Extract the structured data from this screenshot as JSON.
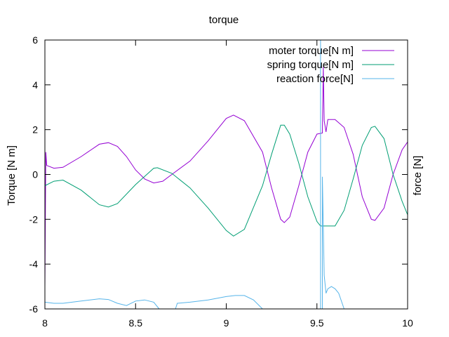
{
  "chart_data": {
    "type": "line",
    "title": "torque",
    "xlabel": "",
    "ylabel": "Torque [N m]",
    "y2label": "force [N]",
    "xlim": [
      8,
      10
    ],
    "ylim": [
      -6,
      6
    ],
    "xticks": [
      "8",
      "8.5",
      "9",
      "9.5",
      "10"
    ],
    "yticks": [
      "-6",
      "-4",
      "-2",
      "0",
      "2",
      "4",
      "6"
    ],
    "grid": false,
    "legend_position": "top-right",
    "series": [
      {
        "name": "moter torque[N m]",
        "color": "#9400d3",
        "points": [
          [
            8.0,
            -5.0
          ],
          [
            8.005,
            1.0
          ],
          [
            8.01,
            0.4
          ],
          [
            8.05,
            0.28
          ],
          [
            8.1,
            0.32
          ],
          [
            8.2,
            0.8
          ],
          [
            8.3,
            1.35
          ],
          [
            8.35,
            1.42
          ],
          [
            8.4,
            1.25
          ],
          [
            8.45,
            0.8
          ],
          [
            8.5,
            0.2
          ],
          [
            8.55,
            -0.2
          ],
          [
            8.6,
            -0.38
          ],
          [
            8.65,
            -0.3
          ],
          [
            8.7,
            0.0
          ],
          [
            8.8,
            0.6
          ],
          [
            8.9,
            1.5
          ],
          [
            9.0,
            2.5
          ],
          [
            9.04,
            2.65
          ],
          [
            9.1,
            2.4
          ],
          [
            9.2,
            1.0
          ],
          [
            9.25,
            -0.6
          ],
          [
            9.3,
            -2.0
          ],
          [
            9.32,
            -2.15
          ],
          [
            9.35,
            -1.9
          ],
          [
            9.4,
            -0.5
          ],
          [
            9.45,
            1.0
          ],
          [
            9.5,
            1.8
          ],
          [
            9.53,
            1.85
          ],
          [
            9.535,
            4.8
          ],
          [
            9.54,
            2.4
          ],
          [
            9.55,
            1.9
          ],
          [
            9.56,
            2.45
          ],
          [
            9.6,
            2.45
          ],
          [
            9.65,
            2.1
          ],
          [
            9.7,
            0.9
          ],
          [
            9.75,
            -1.0
          ],
          [
            9.8,
            -2.0
          ],
          [
            9.82,
            -2.05
          ],
          [
            9.87,
            -1.5
          ],
          [
            9.92,
            0.0
          ],
          [
            9.97,
            1.1
          ],
          [
            10.0,
            1.45
          ]
        ]
      },
      {
        "name": "spring torque[N m]",
        "color": "#009e73",
        "points": [
          [
            8.0,
            -0.5
          ],
          [
            8.05,
            -0.3
          ],
          [
            8.1,
            -0.25
          ],
          [
            8.2,
            -0.7
          ],
          [
            8.3,
            -1.35
          ],
          [
            8.35,
            -1.45
          ],
          [
            8.4,
            -1.3
          ],
          [
            8.5,
            -0.45
          ],
          [
            8.6,
            0.28
          ],
          [
            8.62,
            0.3
          ],
          [
            8.7,
            0.05
          ],
          [
            8.8,
            -0.6
          ],
          [
            8.9,
            -1.5
          ],
          [
            9.0,
            -2.5
          ],
          [
            9.04,
            -2.75
          ],
          [
            9.1,
            -2.45
          ],
          [
            9.2,
            -0.5
          ],
          [
            9.25,
            0.9
          ],
          [
            9.3,
            2.2
          ],
          [
            9.32,
            2.2
          ],
          [
            9.35,
            1.8
          ],
          [
            9.4,
            0.5
          ],
          [
            9.45,
            -1.0
          ],
          [
            9.5,
            -2.1
          ],
          [
            9.52,
            -2.3
          ],
          [
            9.56,
            -2.3
          ],
          [
            9.6,
            -2.3
          ],
          [
            9.65,
            -1.6
          ],
          [
            9.7,
            -0.2
          ],
          [
            9.75,
            1.3
          ],
          [
            9.8,
            2.1
          ],
          [
            9.82,
            2.15
          ],
          [
            9.87,
            1.6
          ],
          [
            9.92,
            0.0
          ],
          [
            9.97,
            -1.2
          ],
          [
            10.0,
            -1.8
          ]
        ]
      },
      {
        "name": "reaction force[N]",
        "color": "#56b4e9",
        "points": [
          [
            8.0,
            -5.7
          ],
          [
            8.05,
            -5.75
          ],
          [
            8.1,
            -5.75
          ],
          [
            8.2,
            -5.65
          ],
          [
            8.3,
            -5.55
          ],
          [
            8.35,
            -5.58
          ],
          [
            8.4,
            -5.75
          ],
          [
            8.45,
            -5.85
          ],
          [
            8.5,
            -5.65
          ],
          [
            8.55,
            -5.6
          ],
          [
            8.6,
            -5.7
          ],
          [
            8.63,
            -6.0
          ]
        ]
      },
      {
        "name": "",
        "color": "#56b4e9",
        "points": [
          [
            8.72,
            -6.0
          ],
          [
            8.73,
            -5.75
          ],
          [
            8.8,
            -5.7
          ],
          [
            8.9,
            -5.6
          ],
          [
            9.0,
            -5.45
          ],
          [
            9.05,
            -5.4
          ],
          [
            9.1,
            -5.4
          ],
          [
            9.15,
            -5.6
          ],
          [
            9.2,
            -6.0
          ]
        ]
      },
      {
        "name": "",
        "color": "#56b4e9",
        "points": [
          [
            9.52,
            -6.0
          ],
          [
            9.52,
            6.0
          ]
        ]
      },
      {
        "name": "",
        "color": "#56b4e9",
        "points": [
          [
            9.53,
            -6.0
          ],
          [
            9.53,
            -0.1
          ],
          [
            9.54,
            -4.5
          ],
          [
            9.55,
            -5.3
          ],
          [
            9.56,
            -5.1
          ],
          [
            9.58,
            -5.0
          ],
          [
            9.6,
            -5.1
          ],
          [
            9.62,
            -5.3
          ],
          [
            9.65,
            -6.0
          ]
        ]
      }
    ]
  }
}
